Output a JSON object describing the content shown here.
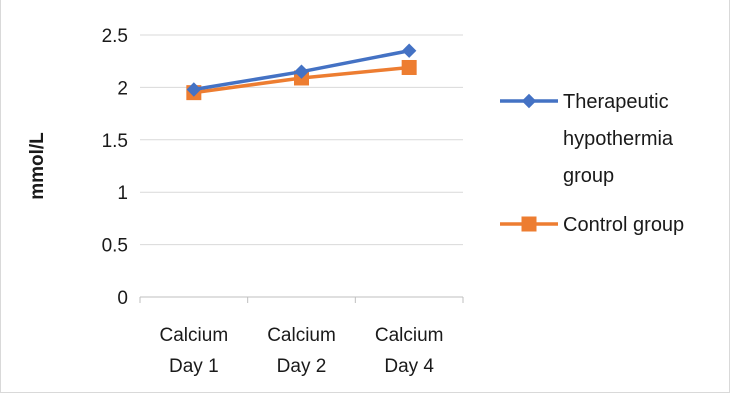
{
  "chart_data": {
    "type": "line",
    "categories": [
      [
        "Calcium",
        "Day 1"
      ],
      [
        "Calcium",
        "Day 2"
      ],
      [
        "Calcium",
        "Day 4"
      ]
    ],
    "series": [
      {
        "name": [
          "Therapeutic",
          "hypothermia",
          "group"
        ],
        "values": [
          1.98,
          2.15,
          2.35
        ],
        "color": "#4472c4",
        "marker": "diamond"
      },
      {
        "name": [
          "Control group"
        ],
        "values": [
          1.95,
          2.09,
          2.19
        ],
        "color": "#ed7d31",
        "marker": "square"
      }
    ],
    "title": "",
    "xlabel": "",
    "ylabel": "mmol/L",
    "ylim": [
      0,
      2.5
    ],
    "yticks": [
      "0",
      "0.5",
      "1",
      "1.5",
      "2",
      "2.5"
    ],
    "grid": true,
    "legend_position": "right"
  }
}
